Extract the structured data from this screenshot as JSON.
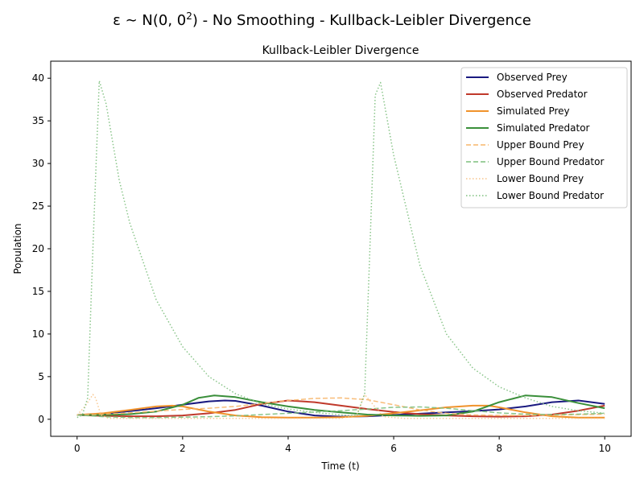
{
  "figure": {
    "suptitle_main": "ε ∼ N(0, 0",
    "suptitle_sup": "2",
    "suptitle_tail": ") - No Smoothing - Kullback-Leibler Divergence"
  },
  "chart_data": {
    "type": "line",
    "title": "Kullback-Leibler Divergence",
    "xlabel": "Time (t)",
    "ylabel": "Population",
    "xlim": [
      -0.5,
      10.5
    ],
    "ylim": [
      -2,
      42
    ],
    "xticks": [
      0,
      2,
      4,
      6,
      8,
      10
    ],
    "yticks": [
      0,
      5,
      10,
      15,
      20,
      25,
      30,
      35,
      40
    ],
    "grid": false,
    "legend_position": "top-right",
    "series": [
      {
        "name": "Observed Prey",
        "color": "#1a1a80",
        "style": "solid",
        "width": 2,
        "x": [
          0,
          0.5,
          1,
          1.5,
          2,
          2.5,
          2.8,
          3,
          3.5,
          4,
          4.5,
          5,
          5.5,
          6,
          6.5,
          7,
          7.5,
          8,
          8.5,
          9,
          9.5,
          10
        ],
        "y": [
          0.5,
          0.65,
          0.95,
          1.3,
          1.7,
          2.1,
          2.2,
          2.15,
          1.6,
          0.9,
          0.45,
          0.3,
          0.35,
          0.5,
          0.65,
          0.8,
          0.95,
          1.15,
          1.5,
          2.0,
          2.2,
          1.8
        ]
      },
      {
        "name": "Observed Predator",
        "color": "#c0392b",
        "style": "solid",
        "width": 2,
        "x": [
          0,
          0.5,
          1,
          1.5,
          2,
          2.5,
          3,
          3.5,
          4,
          4.5,
          5,
          5.5,
          6,
          6.5,
          7,
          7.5,
          8,
          8.5,
          9,
          9.5,
          10
        ],
        "y": [
          0.5,
          0.4,
          0.35,
          0.35,
          0.45,
          0.7,
          1.1,
          1.8,
          2.2,
          2.0,
          1.6,
          1.2,
          0.85,
          0.6,
          0.45,
          0.35,
          0.3,
          0.35,
          0.55,
          1.0,
          1.6
        ]
      },
      {
        "name": "Simulated Prey",
        "color": "#f0922b",
        "style": "solid",
        "width": 2,
        "x": [
          0,
          0.5,
          1,
          1.5,
          1.8,
          2,
          2.5,
          3,
          3.5,
          4,
          4.5,
          5,
          5.5,
          6,
          6.5,
          7,
          7.5,
          7.8,
          8,
          8.5,
          9,
          9.5,
          10
        ],
        "y": [
          0.5,
          0.7,
          1.1,
          1.5,
          1.6,
          1.5,
          0.9,
          0.45,
          0.25,
          0.2,
          0.2,
          0.25,
          0.4,
          0.7,
          1.05,
          1.4,
          1.6,
          1.6,
          1.4,
          0.8,
          0.35,
          0.2,
          0.2
        ]
      },
      {
        "name": "Simulated Predator",
        "color": "#3a8f3a",
        "style": "solid",
        "width": 2,
        "x": [
          0,
          0.5,
          1,
          1.5,
          2,
          2.3,
          2.6,
          3,
          3.5,
          4,
          4.5,
          5,
          5.5,
          6,
          6.5,
          7,
          7.5,
          8,
          8.5,
          9,
          9.5,
          10
        ],
        "y": [
          0.5,
          0.5,
          0.6,
          0.9,
          1.7,
          2.5,
          2.8,
          2.6,
          2.0,
          1.5,
          1.1,
          0.8,
          0.55,
          0.45,
          0.4,
          0.45,
          0.9,
          2.0,
          2.8,
          2.6,
          1.9,
          1.3
        ]
      },
      {
        "name": "Upper Bound Prey",
        "color": "#f7b66a",
        "style": "dashed",
        "width": 1.5,
        "x": [
          0,
          0.5,
          1,
          1.5,
          2,
          2.5,
          3,
          3.5,
          4,
          4.5,
          5,
          5.5,
          6,
          6.5,
          7,
          7.5,
          8,
          8.5,
          9,
          9.5,
          10
        ],
        "y": [
          0.5,
          0.6,
          0.75,
          0.95,
          1.15,
          1.3,
          1.5,
          1.85,
          2.2,
          2.45,
          2.5,
          2.3,
          1.7,
          1.1,
          0.7,
          0.5,
          0.45,
          0.45,
          0.5,
          0.55,
          0.6
        ]
      },
      {
        "name": "Upper Bound Predator",
        "color": "#7dbf7d",
        "style": "dashed",
        "width": 1.5,
        "x": [
          0,
          0.5,
          1,
          1.5,
          2,
          2.5,
          3,
          3.5,
          4,
          4.5,
          5,
          5.5,
          6,
          6.5,
          7,
          7.5,
          8,
          8.5,
          9,
          9.5,
          10
        ],
        "y": [
          0.5,
          0.3,
          0.2,
          0.2,
          0.25,
          0.3,
          0.4,
          0.55,
          0.7,
          0.85,
          1.0,
          1.2,
          1.4,
          1.45,
          1.3,
          1.0,
          0.75,
          0.6,
          0.55,
          0.6,
          0.7
        ]
      },
      {
        "name": "Lower Bound Prey",
        "color": "#f7c48a",
        "style": "dotted",
        "width": 1.5,
        "x": [
          0,
          0.15,
          0.3,
          0.35,
          0.45,
          0.6,
          1,
          2,
          3,
          4,
          5,
          5.3,
          5.45,
          5.6,
          5.8,
          6.2,
          7,
          8,
          9,
          10
        ],
        "y": [
          0.5,
          1.5,
          2.9,
          2.5,
          0.5,
          0.1,
          0.1,
          0.1,
          0.1,
          0.1,
          0.1,
          0.5,
          2.9,
          1.8,
          0.3,
          0.1,
          0.1,
          0.1,
          0.1,
          0.1
        ]
      },
      {
        "name": "Lower Bound Predator",
        "color": "#7dbf7d",
        "style": "dotted",
        "width": 1.5,
        "x": [
          0,
          0.1,
          0.2,
          0.3,
          0.42,
          0.55,
          0.8,
          1,
          1.5,
          2,
          2.5,
          3,
          3.5,
          4,
          4.5,
          5,
          5.3,
          5.45,
          5.55,
          5.65,
          5.75,
          6,
          6.5,
          7,
          7.5,
          8,
          8.5,
          9,
          9.5,
          10
        ],
        "y": [
          0.2,
          0.5,
          2.5,
          20,
          39.7,
          37,
          28,
          23,
          14,
          8.5,
          5,
          3,
          1.8,
          1.2,
          0.8,
          0.5,
          0.4,
          3,
          20,
          38,
          39.5,
          31,
          18,
          10,
          6,
          3.8,
          2.5,
          1.5,
          1.0,
          0.7
        ]
      }
    ]
  }
}
